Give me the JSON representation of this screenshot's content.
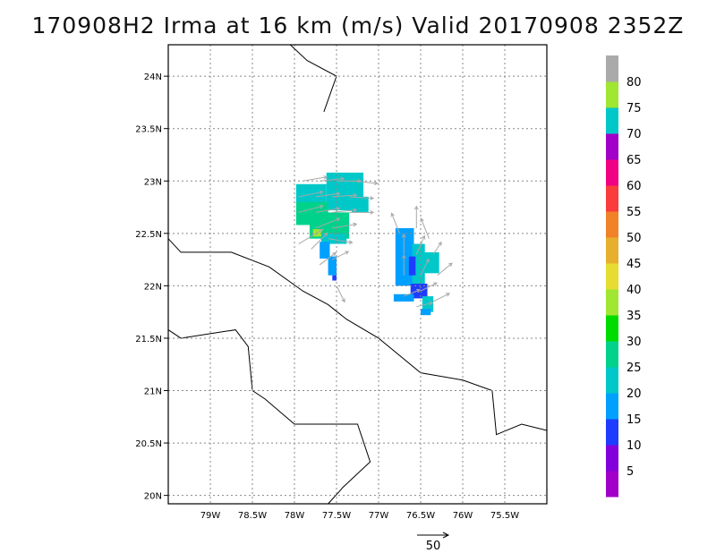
{
  "title": "170908H2 Irma at 16 km (m/s) Valid 20170908 2352Z",
  "lon_range": [
    -79.5,
    -75.0
  ],
  "lat_range": [
    19.92,
    24.3
  ],
  "lon_ticks": [
    {
      "v": -79.0,
      "label": "79W"
    },
    {
      "v": -78.5,
      "label": "78.5W"
    },
    {
      "v": -78.0,
      "label": "78W"
    },
    {
      "v": -77.5,
      "label": "77.5W"
    },
    {
      "v": -77.0,
      "label": "77W"
    },
    {
      "v": -76.5,
      "label": "76.5W"
    },
    {
      "v": -76.0,
      "label": "76W"
    },
    {
      "v": -75.5,
      "label": "75.5W"
    }
  ],
  "lat_ticks": [
    {
      "v": 20.0,
      "label": "20N"
    },
    {
      "v": 20.5,
      "label": "20.5N"
    },
    {
      "v": 21.0,
      "label": "21N"
    },
    {
      "v": 21.5,
      "label": "21.5N"
    },
    {
      "v": 22.0,
      "label": "22N"
    },
    {
      "v": 22.5,
      "label": "22.5N"
    },
    {
      "v": 23.0,
      "label": "23N"
    },
    {
      "v": 23.5,
      "label": "23.5N"
    },
    {
      "v": 24.0,
      "label": "24N"
    }
  ],
  "colorbar": {
    "bins": [
      {
        "color": "#a000c8",
        "label": "5"
      },
      {
        "color": "#8200dc",
        "label": "10"
      },
      {
        "color": "#1e3cff",
        "label": "15"
      },
      {
        "color": "#00a0ff",
        "label": "20"
      },
      {
        "color": "#00c8c8",
        "label": "25"
      },
      {
        "color": "#00d28c",
        "label": "30"
      },
      {
        "color": "#00dc00",
        "label": "35"
      },
      {
        "color": "#a0e632",
        "label": "40"
      },
      {
        "color": "#e6dc32",
        "label": "45"
      },
      {
        "color": "#e6af2d",
        "label": "50"
      },
      {
        "color": "#f08228",
        "label": "55"
      },
      {
        "color": "#fa3c3c",
        "label": "60"
      },
      {
        "color": "#f00082",
        "label": "65"
      },
      {
        "color": "#a000c8",
        "label": "70"
      },
      {
        "color": "#00c8c8",
        "label": "75"
      },
      {
        "color": "#a0e632",
        "label": "80"
      },
      {
        "color": "#aaaaaa",
        "label": ""
      }
    ]
  },
  "coastlines": [
    [
      [
        -79.5,
        22.45
      ],
      [
        -79.35,
        22.32
      ],
      [
        -79.1,
        22.32
      ],
      [
        -78.75,
        22.32
      ],
      [
        -78.3,
        22.18
      ],
      [
        -77.9,
        21.95
      ],
      [
        -77.6,
        21.82
      ],
      [
        -77.38,
        21.68
      ],
      [
        -77.0,
        21.5
      ],
      [
        -76.5,
        21.17
      ],
      [
        -76.0,
        21.1
      ],
      [
        -75.65,
        21.0
      ],
      [
        -75.6,
        20.58
      ],
      [
        -75.3,
        20.68
      ],
      [
        -75.0,
        20.62
      ]
    ],
    [
      [
        -79.5,
        21.58
      ],
      [
        -79.35,
        21.5
      ],
      [
        -78.95,
        21.55
      ],
      [
        -78.7,
        21.58
      ],
      [
        -78.55,
        21.42
      ],
      [
        -78.5,
        21.0
      ],
      [
        -78.35,
        20.92
      ],
      [
        -78.0,
        20.68
      ],
      [
        -77.7,
        20.68
      ],
      [
        -77.25,
        20.68
      ],
      [
        -77.1,
        20.32
      ],
      [
        -77.42,
        20.08
      ],
      [
        -77.6,
        19.92
      ]
    ],
    [
      [
        -78.05,
        24.3
      ],
      [
        -77.85,
        24.15
      ],
      [
        -77.5,
        24.0
      ],
      [
        -77.65,
        23.66
      ]
    ]
  ],
  "wind_field": {
    "cells": [
      {
        "lon": [
          -77.62,
          -77.18
        ],
        "lat": [
          22.72,
          23.08
        ],
        "bin": 4
      },
      {
        "lon": [
          -77.98,
          -77.62
        ],
        "lat": [
          22.78,
          22.97
        ],
        "bin": 4
      },
      {
        "lon": [
          -77.98,
          -77.6
        ],
        "lat": [
          22.58,
          22.8
        ],
        "bin": 5
      },
      {
        "lon": [
          -77.82,
          -77.35
        ],
        "lat": [
          22.45,
          22.7
        ],
        "bin": 5
      },
      {
        "lon": [
          -77.68,
          -77.38
        ],
        "lat": [
          22.4,
          22.5
        ],
        "bin": 4
      },
      {
        "lon": [
          -77.7,
          -77.58
        ],
        "lat": [
          22.26,
          22.42
        ],
        "bin": 3
      },
      {
        "lon": [
          -77.6,
          -77.5
        ],
        "lat": [
          22.1,
          22.28
        ],
        "bin": 3
      },
      {
        "lon": [
          -77.55,
          -77.5
        ],
        "lat": [
          22.05,
          22.1
        ],
        "bin": 2
      },
      {
        "lon": [
          -77.78,
          -77.68
        ],
        "lat": [
          22.47,
          22.54
        ],
        "bin": 7
      },
      {
        "lon": [
          -77.32,
          -77.12
        ],
        "lat": [
          22.7,
          22.85
        ],
        "bin": 4
      },
      {
        "lon": [
          -76.8,
          -76.58
        ],
        "lat": [
          22.0,
          22.55
        ],
        "bin": 3
      },
      {
        "lon": [
          -76.6,
          -76.45
        ],
        "lat": [
          21.9,
          22.4
        ],
        "bin": 4
      },
      {
        "lon": [
          -76.48,
          -76.28
        ],
        "lat": [
          22.12,
          22.32
        ],
        "bin": 4
      },
      {
        "lon": [
          -76.64,
          -76.56
        ],
        "lat": [
          22.1,
          22.28
        ],
        "bin": 2
      },
      {
        "lon": [
          -76.62,
          -76.42
        ],
        "lat": [
          21.88,
          22.02
        ],
        "bin": 2
      },
      {
        "lon": [
          -76.82,
          -76.58
        ],
        "lat": [
          21.85,
          21.92
        ],
        "bin": 3
      },
      {
        "lon": [
          -76.48,
          -76.35
        ],
        "lat": [
          21.75,
          21.9
        ],
        "bin": 4
      },
      {
        "lon": [
          -76.5,
          -76.38
        ],
        "lat": [
          21.72,
          21.78
        ],
        "bin": 3
      }
    ],
    "vectors": [
      [
        -77.9,
        23.0,
        3,
        0.5
      ],
      [
        -77.7,
        23.0,
        3,
        0.3
      ],
      [
        -77.5,
        23.0,
        3,
        0.0
      ],
      [
        -77.3,
        23.0,
        3,
        -0.3
      ],
      [
        -77.95,
        22.85,
        3,
        0.6
      ],
      [
        -77.75,
        22.85,
        3,
        0.4
      ],
      [
        -77.55,
        22.85,
        3,
        0.2
      ],
      [
        -77.35,
        22.85,
        3,
        -0.2
      ],
      [
        -77.95,
        22.7,
        3,
        0.8
      ],
      [
        -77.75,
        22.7,
        3,
        0.5
      ],
      [
        -77.55,
        22.7,
        3,
        0.3
      ],
      [
        -77.35,
        22.7,
        3,
        0.0
      ],
      [
        -77.95,
        22.4,
        3,
        1.8
      ],
      [
        -77.75,
        22.55,
        3,
        1.2
      ],
      [
        -77.55,
        22.55,
        3,
        0.5
      ],
      [
        -77.8,
        22.35,
        2,
        2.0
      ],
      [
        -77.7,
        22.2,
        2,
        1.5
      ],
      [
        -77.55,
        22.25,
        2,
        1.0
      ],
      [
        -77.5,
        22.0,
        1,
        -2.0
      ],
      [
        -77.6,
        22.45,
        3,
        -0.5
      ],
      [
        -76.75,
        22.5,
        -1,
        2.5
      ],
      [
        -76.55,
        22.55,
        0,
        2.7
      ],
      [
        -76.4,
        22.45,
        -1,
        2.5
      ],
      [
        -76.7,
        22.3,
        0,
        2.5
      ],
      [
        -76.55,
        22.3,
        1,
        2.3
      ],
      [
        -76.35,
        22.3,
        1,
        1.5
      ],
      [
        -76.7,
        22.1,
        0,
        2.5
      ],
      [
        -76.5,
        22.1,
        1,
        2.0
      ],
      [
        -76.3,
        22.1,
        1.8,
        1.5
      ],
      [
        -76.7,
        21.9,
        2,
        0.8
      ],
      [
        -76.5,
        21.95,
        2,
        1.0
      ],
      [
        -76.35,
        21.85,
        2,
        1.0
      ],
      [
        -76.55,
        21.8,
        2,
        0.5
      ]
    ]
  },
  "reference_vector": {
    "label": "50"
  }
}
